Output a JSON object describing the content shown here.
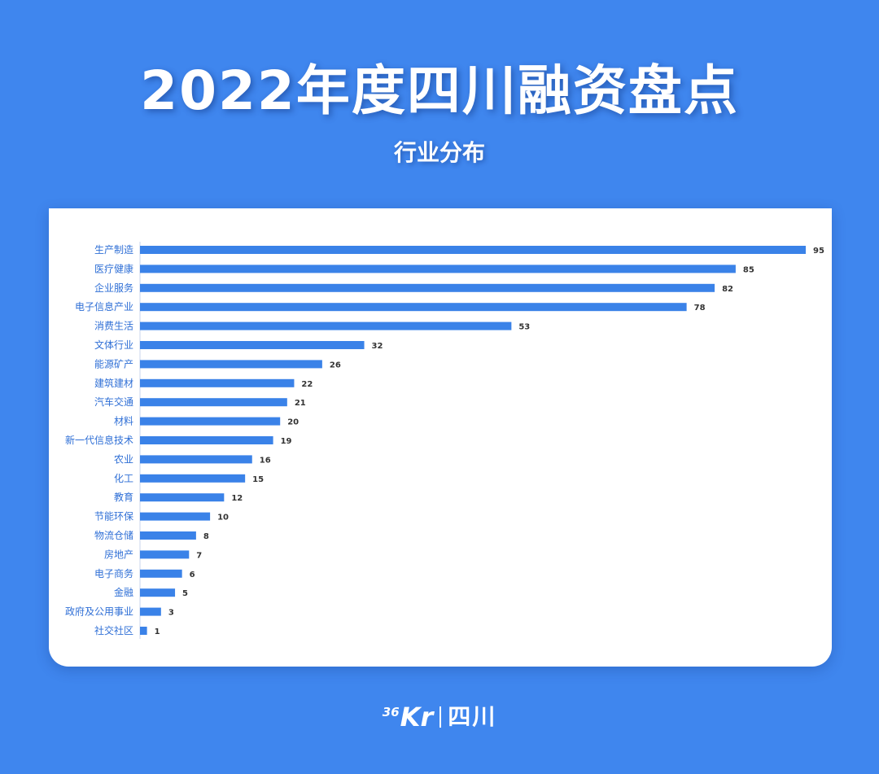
{
  "header": {
    "title": "2022年度四川融资盘点",
    "subtitle": "行业分布"
  },
  "footer": {
    "logo_superscript": "36",
    "logo_main": "Kr",
    "logo_city": "四川"
  },
  "colors": {
    "background": "#3f86ee",
    "bar": "#3a82e8",
    "label": "#2f6fd6",
    "value": "#333333"
  },
  "chart_data": {
    "type": "bar",
    "orientation": "horizontal",
    "title": "",
    "xlabel": "",
    "ylabel": "",
    "xlim": [
      0,
      95
    ],
    "grid": false,
    "categories": [
      "生产制造",
      "医疗健康",
      "企业服务",
      "电子信息产业",
      "消费生活",
      "文体行业",
      "能源矿产",
      "建筑建材",
      "汽车交通",
      "材料",
      "新一代信息技术",
      "农业",
      "化工",
      "教育",
      "节能环保",
      "物流仓储",
      "房地产",
      "电子商务",
      "金融",
      "政府及公用事业",
      "社交社区"
    ],
    "values": [
      95,
      85,
      82,
      78,
      53,
      32,
      26,
      22,
      21,
      20,
      19,
      16,
      15,
      12,
      10,
      8,
      7,
      6,
      5,
      3,
      1
    ]
  }
}
